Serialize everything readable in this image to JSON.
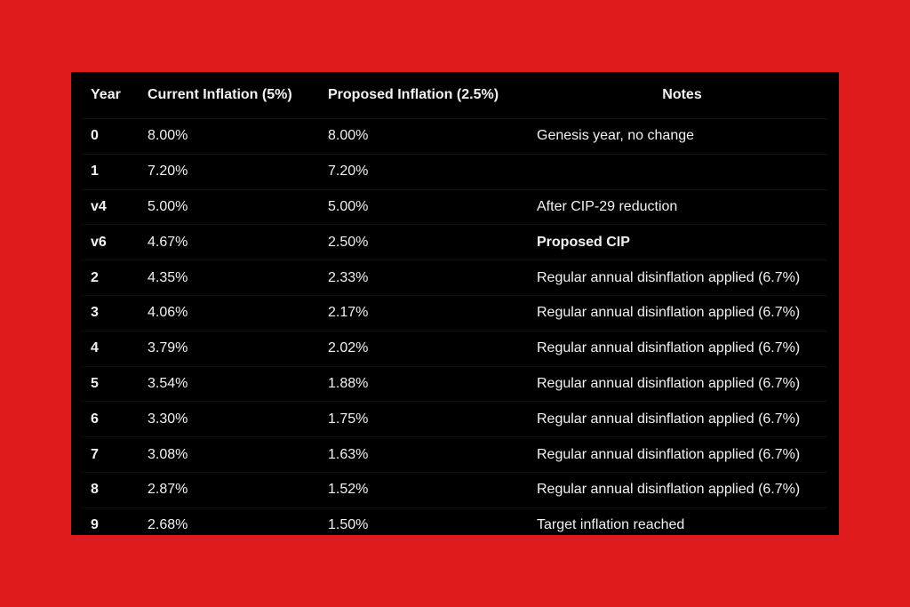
{
  "chart_data": {
    "type": "table",
    "columns": [
      "Year",
      "Current Inflation (5%)",
      "Proposed Inflation (2.5%)",
      "Notes"
    ],
    "rows": [
      {
        "year": "0",
        "current": "8.00%",
        "proposed": "8.00%",
        "notes": "Genesis year, no change",
        "notes_bold": false
      },
      {
        "year": "1",
        "current": "7.20%",
        "proposed": "7.20%",
        "notes": "",
        "notes_bold": false
      },
      {
        "year": "v4",
        "current": "5.00%",
        "proposed": "5.00%",
        "notes": "After CIP-29 reduction",
        "notes_bold": false
      },
      {
        "year": "v6",
        "current": "4.67%",
        "proposed": "2.50%",
        "notes": "Proposed CIP",
        "notes_bold": true
      },
      {
        "year": "2",
        "current": "4.35%",
        "proposed": "2.33%",
        "notes": "Regular annual disinflation applied (6.7%)",
        "notes_bold": false
      },
      {
        "year": "3",
        "current": "4.06%",
        "proposed": "2.17%",
        "notes": "Regular annual disinflation applied (6.7%)",
        "notes_bold": false
      },
      {
        "year": "4",
        "current": "3.79%",
        "proposed": "2.02%",
        "notes": "Regular annual disinflation applied (6.7%)",
        "notes_bold": false
      },
      {
        "year": "5",
        "current": "3.54%",
        "proposed": "1.88%",
        "notes": "Regular annual disinflation applied (6.7%)",
        "notes_bold": false
      },
      {
        "year": "6",
        "current": "3.30%",
        "proposed": "1.75%",
        "notes": "Regular annual disinflation applied (6.7%)",
        "notes_bold": false
      },
      {
        "year": "7",
        "current": "3.08%",
        "proposed": "1.63%",
        "notes": "Regular annual disinflation applied (6.7%)",
        "notes_bold": false
      },
      {
        "year": "8",
        "current": "2.87%",
        "proposed": "1.52%",
        "notes": "Regular annual disinflation applied (6.7%)",
        "notes_bold": false
      },
      {
        "year": "9",
        "current": "2.68%",
        "proposed": "1.50%",
        "notes": "Target inflation reached",
        "notes_bold": false
      }
    ]
  },
  "colors": {
    "background": "#df1a1a",
    "panel": "#000000",
    "text": "#f2f2f2"
  }
}
